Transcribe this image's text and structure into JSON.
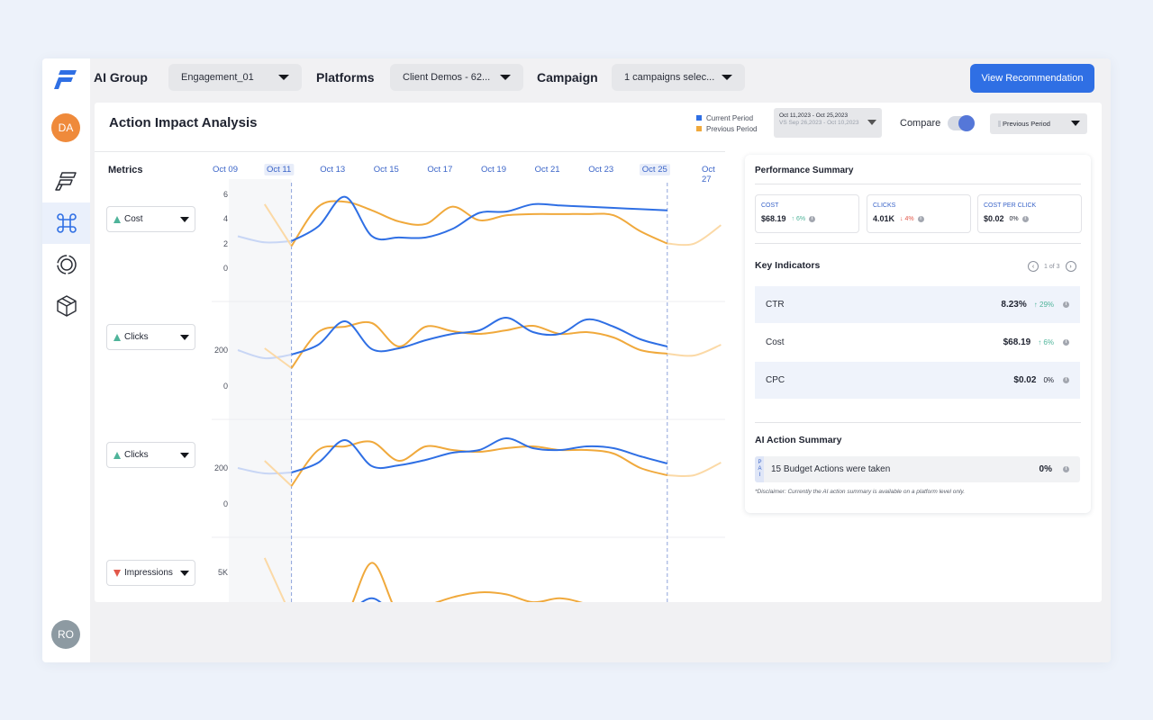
{
  "topbar": {
    "ai_group_label": "AI Group",
    "ai_group_value": "Engagement_01",
    "platforms_label": "Platforms",
    "platforms_value": "Client Demos - 62...",
    "campaign_label": "Campaign",
    "campaign_value": "1 campaigns selec...",
    "cta_label": "View Recommendation"
  },
  "sidebar": {
    "user_initials": "DA",
    "bottom_initials": "RO",
    "items": [
      {
        "icon": "brand-logo-icon"
      },
      {
        "icon": "command-icon",
        "active": true
      },
      {
        "icon": "target-ring-icon"
      },
      {
        "icon": "cube-icon"
      }
    ]
  },
  "analysis": {
    "title": "Action Impact Analysis",
    "legend_current": "Current Period",
    "legend_previous": "Previous Period",
    "date_range": "Oct 11,2023 - Oct 25,2023",
    "date_compare": "VS  Sep 26,2023 - Oct 10,2023",
    "compare_label": "Compare",
    "compare_on": true,
    "compare_period": "Previous Period",
    "colors": {
      "current": "#2f6fe4",
      "previous": "#f0a93c",
      "faded_current": "#c8d6f5",
      "faded_previous": "#fbd9a6"
    }
  },
  "metrics_header": "Metrics",
  "chart_data": {
    "type": "line",
    "x_labels": [
      "Oct 09",
      "Oct 11",
      "Oct 13",
      "Oct 15",
      "Oct 17",
      "Oct 19",
      "Oct 21",
      "Oct 23",
      "Oct 25",
      "Oct 27"
    ],
    "highlighted_x": [
      "Oct 11",
      "Oct 25"
    ],
    "panels": [
      {
        "metric": "Cost",
        "trend": "up",
        "y_ticks": [
          "6",
          "4",
          "2",
          "0"
        ],
        "ylim": [
          0,
          6
        ],
        "x_days": [
          9,
          10,
          11,
          12,
          13,
          14,
          15,
          16,
          17,
          18,
          19,
          20,
          21,
          22,
          23,
          24,
          25,
          26,
          27
        ],
        "current": [
          2.6,
          2.1,
          2.2,
          3.4,
          5.8,
          2.6,
          2.5,
          2.5,
          3.2,
          4.5,
          4.6,
          5.2,
          5.1,
          5.0,
          4.9,
          4.8,
          4.7,
          null,
          null
        ],
        "previous": [
          null,
          5.2,
          1.8,
          5.0,
          5.4,
          4.7,
          3.8,
          3.6,
          5.0,
          3.9,
          4.3,
          4.4,
          4.4,
          4.4,
          4.3,
          3.0,
          2.0,
          2.0,
          3.5
        ]
      },
      {
        "metric": "Clicks",
        "trend": "up",
        "y_ticks": [
          "200",
          "0"
        ],
        "ylim": [
          0,
          410
        ],
        "x_days": [
          9,
          10,
          11,
          12,
          13,
          14,
          15,
          16,
          17,
          18,
          19,
          20,
          21,
          22,
          23,
          24,
          25,
          26,
          27
        ],
        "current": [
          200,
          155,
          175,
          230,
          360,
          205,
          210,
          255,
          290,
          310,
          380,
          300,
          290,
          370,
          330,
          260,
          220,
          null,
          null
        ],
        "previous": [
          null,
          210,
          100,
          300,
          330,
          350,
          220,
          330,
          305,
          290,
          310,
          335,
          290,
          300,
          270,
          200,
          180,
          170,
          230
        ]
      },
      {
        "metric": "Clicks",
        "trend": "up",
        "y_ticks": [
          "200",
          "0"
        ],
        "ylim": [
          0,
          410
        ],
        "x_days": [
          9,
          10,
          11,
          12,
          13,
          14,
          15,
          16,
          17,
          18,
          19,
          20,
          21,
          22,
          23,
          24,
          25,
          26,
          27
        ],
        "current": [
          200,
          170,
          175,
          230,
          355,
          210,
          215,
          245,
          285,
          300,
          365,
          310,
          300,
          320,
          310,
          265,
          225,
          null,
          null
        ],
        "previous": [
          null,
          240,
          100,
          300,
          320,
          345,
          240,
          320,
          300,
          290,
          310,
          320,
          300,
          300,
          280,
          200,
          160,
          160,
          230
        ]
      },
      {
        "metric": "Impressions",
        "trend": "down",
        "y_ticks": [
          "5K"
        ],
        "ylim": [
          0,
          7500
        ],
        "x_days": [
          9,
          10,
          11,
          12,
          13,
          14,
          15,
          16,
          17,
          18,
          19,
          20,
          21,
          22,
          23,
          24,
          25,
          26,
          27
        ],
        "current": [
          900,
          700,
          300,
          400,
          800,
          2400,
          600,
          1500,
          1800,
          1000,
          1800,
          1500,
          700,
          900,
          1400,
          200,
          300,
          null,
          null
        ],
        "previous": [
          null,
          6500,
          500,
          1200,
          600,
          6000,
          800,
          1600,
          2500,
          3000,
          2800,
          2000,
          2400,
          1800,
          800,
          200,
          200,
          200,
          600
        ]
      }
    ]
  },
  "performance_summary": {
    "title": "Performance Summary",
    "stats": [
      {
        "label": "COST",
        "value": "$68.19",
        "change": "↑ 6%",
        "dir": "up"
      },
      {
        "label": "CLICKS",
        "value": "4.01K",
        "change": "↓ 4%",
        "dir": "down"
      },
      {
        "label": "COST PER CLICK",
        "value": "$0.02",
        "change": "0%",
        "dir": "neutral"
      }
    ]
  },
  "key_indicators": {
    "title": "Key Indicators",
    "pager": "1 of 3",
    "rows": [
      {
        "name": "CTR",
        "value": "8.23%",
        "change": "↑ 29%",
        "dir": "up"
      },
      {
        "name": "Cost",
        "value": "$68.19",
        "change": "↑ 6%",
        "dir": "up"
      },
      {
        "name": "CPC",
        "value": "$0.02",
        "change": "0%",
        "dir": "neutral"
      }
    ]
  },
  "ai_action_summary": {
    "title": "AI Action Summary",
    "tag": "PAI",
    "text": "15 Budget Actions were taken",
    "value": "0%",
    "disclaimer": "*Disclaimer: Currently the AI action summary is available on a platform level only."
  }
}
